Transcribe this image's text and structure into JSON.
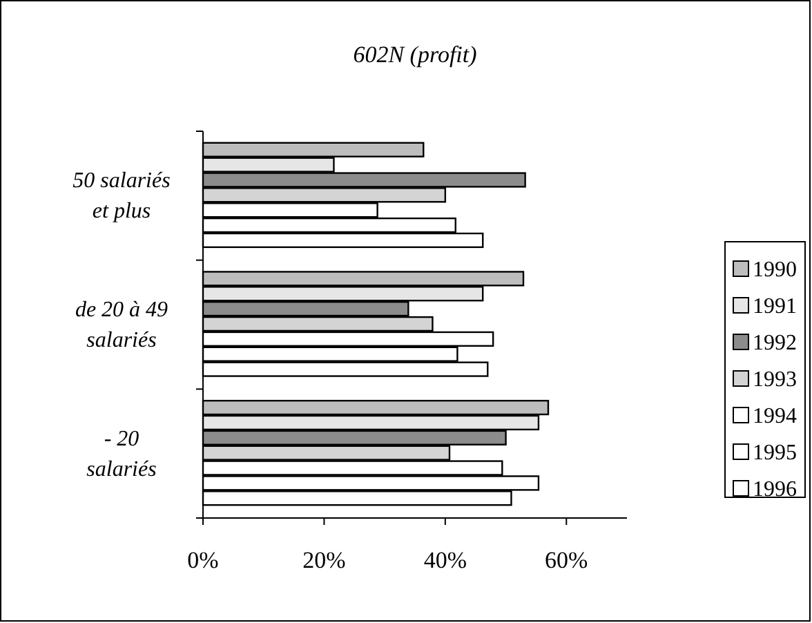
{
  "chart_data": {
    "type": "bar",
    "orientation": "horizontal",
    "title": "602N (profit)",
    "categories": [
      "50 salariés et plus",
      "de 20 à 49 salariés",
      "- 20 salariés"
    ],
    "series": [
      {
        "name": "1990",
        "color": "#bdbdbd",
        "values": [
          36.4,
          52.9,
          57
        ]
      },
      {
        "name": "1991",
        "color": "#e6e6e6",
        "values": [
          21.6,
          46.2,
          55.4
        ]
      },
      {
        "name": "1992",
        "color": "#8c8c8c",
        "values": [
          53.2,
          33.9,
          50
        ]
      },
      {
        "name": "1993",
        "color": "#d4d4d4",
        "values": [
          40,
          37.9,
          40.7
        ]
      },
      {
        "name": "1994",
        "color": "#ffffff",
        "values": [
          28.8,
          47.9,
          49.4
        ]
      },
      {
        "name": "1995",
        "color": "#ffffff",
        "values": [
          41.7,
          42,
          55.4
        ]
      },
      {
        "name": "1996",
        "color": "#ffffff",
        "values": [
          46.2,
          47,
          50.9
        ]
      }
    ],
    "xlim": [
      0,
      70
    ],
    "xticks": [
      {
        "value": 0,
        "label": "0%"
      },
      {
        "value": 20,
        "label": "20%"
      },
      {
        "value": 40,
        "label": "40%"
      },
      {
        "value": 60,
        "label": "60%"
      }
    ],
    "legend": "right",
    "grid": false
  }
}
